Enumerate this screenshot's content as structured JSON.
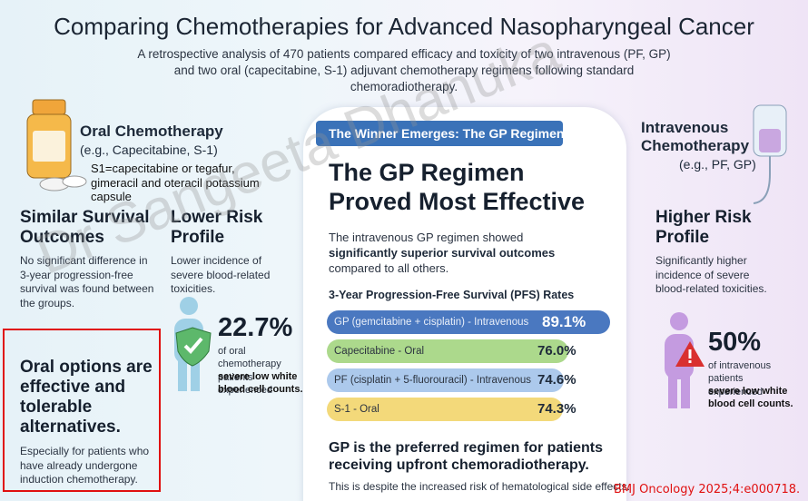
{
  "header": {
    "title": "Comparing Chemotherapies for Advanced Nasopharyngeal Cancer",
    "subtitle": "A retrospective analysis of 470 patients compared efficacy and toxicity of two intravenous (PF, GP) and two oral (capecitabine, S-1) adjuvant chemotherapy regimens following standard chemoradiotherapy."
  },
  "oral": {
    "title": "Oral Chemotherapy",
    "example": "(e.g., Capecitabine, S-1)",
    "note": "S1=capecitabine or tegafur, gimeracil and oteracil potassium capsule",
    "survival_title": "Similar Survival Outcomes",
    "survival_text": "No significant difference in 3-year progression-free survival was found between the groups.",
    "risk_title": "Lower Risk Profile",
    "risk_text": "Lower incidence of severe blood-related toxicities.",
    "stat": "22.7%",
    "stat_text": "of oral chemotherapy patients experienced",
    "stat_bold": "severe low white blood cell counts.",
    "conclusion_title": "Oral options are effective and tolerable alternatives.",
    "conclusion_text": "Especially for patients who have already undergone induction chemotherapy."
  },
  "center": {
    "banner": "The Winner Emerges: The GP Regimen",
    "heading": "The GP Regimen Proved Most Effective",
    "text": "The intravenous GP regimen showed",
    "text_bold": "significantly superior survival outcomes",
    "text_end": "compared to all others.",
    "pfs": {
      "title": "3-Year Progression-Free Survival (PFS) Rates",
      "rows": [
        {
          "label": "GP (gemcitabine + cisplatin) - Intravenous",
          "value": 89.1,
          "value_label": "89.1%",
          "color": "#4a78c0"
        },
        {
          "label": "Capecitabine - Oral",
          "value": 76.0,
          "value_label": "76.0%",
          "color": "#acd98c"
        },
        {
          "label": "PF (cisplatin + 5-fluorouracil) - Intravenous",
          "value": 74.6,
          "value_label": "74.6%",
          "color": "#acc9ec"
        },
        {
          "label": "S-1 - Oral",
          "value": 74.3,
          "value_label": "74.3%",
          "color": "#f3d97a"
        }
      ]
    },
    "conclusion": "GP is the preferred regimen for patients receiving upfront chemoradiotherapy.",
    "note": "This is despite the increased risk of hematological side effects."
  },
  "iv": {
    "title": "Intravenous Chemotherapy",
    "example": "(e.g., PF, GP)",
    "risk_title": "Higher Risk Profile",
    "risk_text": "Significantly higher incidence of severe blood-related toxicities.",
    "stat": "50%",
    "stat_text": "of intravenous patients experienced",
    "stat_bold": "severe low white blood cell counts."
  },
  "watermark": "Dr Sangeeta Dhanuka",
  "citation": "BMJ Oncology 2025;4:e000718."
}
